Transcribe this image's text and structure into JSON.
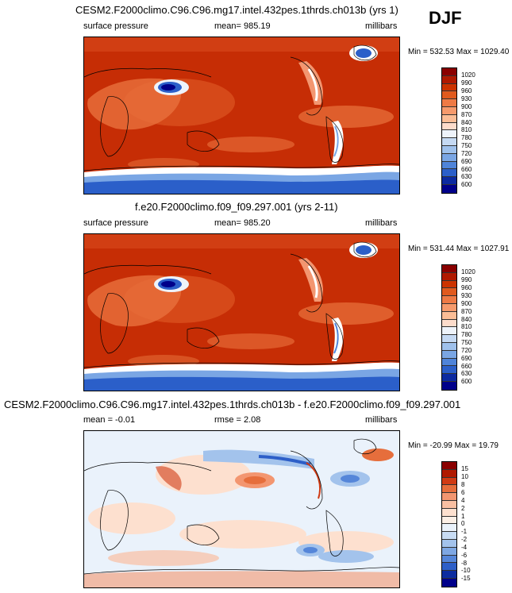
{
  "season": "DJF",
  "colors": {
    "abs_scale": [
      "#8a0000",
      "#b01900",
      "#cc3300",
      "#e05a1e",
      "#ee7a45",
      "#f69a6c",
      "#fbbd96",
      "#fddccb",
      "#eef3fa",
      "#c5d9f3",
      "#9fc1ec",
      "#7aa6e4",
      "#4f84d9",
      "#2b5fc9",
      "#0c2aa0",
      "#00008a"
    ],
    "diff_scale": [
      "#8a0000",
      "#b01900",
      "#d03b14",
      "#e66e3c",
      "#f39670",
      "#f9bfa2",
      "#fde0cf",
      "#fbefe6",
      "#eaf2fb",
      "#c8dcf4",
      "#a3c3ec",
      "#7ea7e3",
      "#5586d9",
      "#2d5fc8",
      "#0d2ca0",
      "#00008a"
    ]
  },
  "chart_data": [
    {
      "type": "heatmap",
      "title": "CESM2.F2000climo.C96.C96.mg17.intel.432pes.1thrds.ch013b (yrs 1)",
      "variable": "surface pressure",
      "stat_label": "mean= 985.19",
      "units": "millibars",
      "minmax": "Min = 532.53 Max = 1029.40",
      "levels": [
        "1020",
        "990",
        "960",
        "930",
        "900",
        "870",
        "840",
        "810",
        "780",
        "750",
        "720",
        "690",
        "660",
        "630",
        "600"
      ]
    },
    {
      "type": "heatmap",
      "title": "f.e20.F2000climo.f09_f09.297.001 (yrs 2-11)",
      "variable": "surface pressure",
      "stat_label": "mean= 985.20",
      "units": "millibars",
      "minmax": "Min = 531.44 Max = 1027.91",
      "levels": [
        "1020",
        "990",
        "960",
        "930",
        "900",
        "870",
        "840",
        "810",
        "780",
        "750",
        "720",
        "690",
        "660",
        "630",
        "600"
      ]
    },
    {
      "type": "heatmap",
      "title": "CESM2.F2000climo.C96.C96.mg17.intel.432pes.1thrds.ch013b - f.e20.F2000climo.f09_f09.297.001",
      "variable": "mean =  -0.01",
      "stat_label": "rmse =   2.08",
      "units": "millibars",
      "minmax": "Min = -20.99 Max =  19.79",
      "levels": [
        "15",
        "10",
        "8",
        "6",
        "4",
        "2",
        "1",
        "0",
        "-1",
        "-2",
        "-4",
        "-6",
        "-8",
        "-10",
        "-15"
      ]
    }
  ]
}
